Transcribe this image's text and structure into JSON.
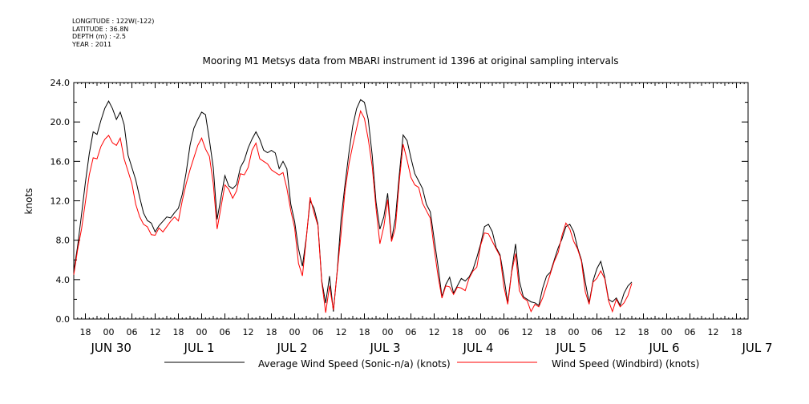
{
  "metadata": {
    "longitude": "LONGITUDE : 122W(-122)",
    "latitude": "LATITUDE : 36.8N",
    "depth": "DEPTH (m) : -2.5",
    "year": "YEAR : 2011"
  },
  "chart_data": {
    "type": "line",
    "title": "Mooring M1 Metsys data from MBARI instrument id 1396 at original sampling intervals",
    "ylabel": "knots",
    "xlabel": "",
    "ylim": [
      0,
      24
    ],
    "yticks": [
      "0.0",
      "4.0",
      "8.0",
      "12.0",
      "16.0",
      "20.0",
      "24.0"
    ],
    "xlim_hours": [
      -9,
      165
    ],
    "hour_tick_labels": [
      "18",
      "00",
      "06",
      "12",
      "18",
      "00",
      "06",
      "12",
      "18",
      "00",
      "06",
      "12",
      "18",
      "00",
      "06",
      "12",
      "18",
      "00",
      "06",
      "12",
      "18",
      "00",
      "06",
      "12",
      "18",
      "00",
      "06",
      "12",
      "18",
      "00",
      "06",
      "12"
    ],
    "day_labels": [
      "JUN 30",
      "JUL  1",
      "JUL  2",
      "JUL  3",
      "JUL  4",
      "JUL  5",
      "JUL  6",
      "JUL  7"
    ],
    "grid": false,
    "legend_position": "bottom",
    "series": [
      {
        "name": "Average Wind Speed (Sonic-n/a) (knots)",
        "color": "#000000",
        "points": [
          [
            -9,
            5.2
          ],
          [
            -8,
            7.5
          ],
          [
            -7,
            10.5
          ],
          [
            -6,
            13.5
          ],
          [
            -5,
            17
          ],
          [
            -4,
            19
          ],
          [
            -3,
            18.5
          ],
          [
            -2,
            20.5
          ],
          [
            -1,
            21.5
          ],
          [
            0,
            22
          ],
          [
            1,
            21
          ],
          [
            2,
            20.5
          ],
          [
            3,
            21
          ],
          [
            4,
            19.5
          ],
          [
            5,
            17
          ],
          [
            6,
            15.5
          ],
          [
            7,
            14
          ],
          [
            8,
            12
          ],
          [
            9,
            11
          ],
          [
            10,
            10
          ],
          [
            11,
            9.5
          ],
          [
            12,
            9.2
          ],
          [
            13,
            9.6
          ],
          [
            14,
            9.8
          ],
          [
            15,
            10
          ],
          [
            16,
            10.5
          ],
          [
            17,
            10.8
          ],
          [
            18,
            11
          ],
          [
            19,
            13
          ],
          [
            20,
            15
          ],
          [
            21,
            17.5
          ],
          [
            22,
            19
          ],
          [
            23,
            20.5
          ],
          [
            24,
            21
          ],
          [
            25,
            20.5
          ],
          [
            26,
            18.5
          ],
          [
            27,
            15.5
          ],
          [
            28,
            10
          ],
          [
            29,
            12
          ],
          [
            30,
            14.8
          ],
          [
            31,
            13.5
          ],
          [
            32,
            13
          ],
          [
            33,
            14
          ],
          [
            34,
            15.5
          ],
          [
            35,
            16
          ],
          [
            36,
            17
          ],
          [
            37,
            18.5
          ],
          [
            38,
            19
          ],
          [
            39,
            18
          ],
          [
            40,
            17.5
          ],
          [
            41,
            17
          ],
          [
            42,
            17
          ],
          [
            43,
            16.5
          ],
          [
            44,
            15.5
          ],
          [
            45,
            16
          ],
          [
            46,
            15
          ],
          [
            47,
            12
          ],
          [
            48,
            10
          ],
          [
            49,
            7
          ],
          [
            50,
            5
          ],
          [
            51,
            8.5
          ],
          [
            52,
            12
          ],
          [
            53,
            11
          ],
          [
            54,
            10
          ],
          [
            55,
            4
          ],
          [
            56,
            1.5
          ],
          [
            57,
            4
          ],
          [
            58,
            1
          ],
          [
            59,
            5
          ],
          [
            60,
            10
          ],
          [
            61,
            14
          ],
          [
            62,
            17
          ],
          [
            63,
            19.5
          ],
          [
            64,
            21
          ],
          [
            65,
            22.5
          ],
          [
            66,
            22
          ],
          [
            67,
            20
          ],
          [
            68,
            17
          ],
          [
            69,
            12
          ],
          [
            70,
            9
          ],
          [
            71,
            10
          ],
          [
            72,
            13
          ],
          [
            73,
            8
          ],
          [
            74,
            10
          ],
          [
            75,
            15
          ],
          [
            76,
            18.8
          ],
          [
            77,
            18
          ],
          [
            78,
            16
          ],
          [
            79,
            15
          ],
          [
            80,
            14
          ],
          [
            81,
            13
          ],
          [
            82,
            12
          ],
          [
            83,
            11
          ],
          [
            84,
            8
          ],
          [
            85,
            5
          ],
          [
            86,
            2.5
          ],
          [
            87,
            3.5
          ],
          [
            88,
            4
          ],
          [
            89,
            3
          ],
          [
            90,
            3.5
          ],
          [
            91,
            4
          ],
          [
            92,
            3.5
          ],
          [
            93,
            4.5
          ],
          [
            94,
            5
          ],
          [
            95,
            6
          ],
          [
            96,
            8
          ],
          [
            97,
            9.5
          ],
          [
            98,
            9.5
          ],
          [
            99,
            8.5
          ],
          [
            100,
            7.5
          ],
          [
            101,
            6.5
          ],
          [
            102,
            4
          ],
          [
            103,
            2
          ],
          [
            104,
            5
          ],
          [
            105,
            7.5
          ],
          [
            106,
            3.5
          ],
          [
            107,
            2.5
          ],
          [
            108,
            2
          ],
          [
            109,
            1.5
          ],
          [
            110,
            2
          ],
          [
            111,
            1.5
          ],
          [
            112,
            3
          ],
          [
            113,
            4
          ],
          [
            114,
            5
          ],
          [
            115,
            6
          ],
          [
            116,
            7
          ],
          [
            117,
            8.5
          ],
          [
            118,
            9.5
          ],
          [
            119,
            9.5
          ],
          [
            120,
            8.5
          ],
          [
            121,
            7.5
          ],
          [
            122,
            6
          ],
          [
            123,
            3.5
          ],
          [
            124,
            2
          ],
          [
            125,
            4
          ],
          [
            126,
            5
          ],
          [
            127,
            5.5
          ],
          [
            128,
            4.5
          ],
          [
            129,
            2
          ],
          [
            130,
            1.5
          ],
          [
            131,
            2.5
          ],
          [
            132,
            1.5
          ],
          [
            133,
            2.5
          ],
          [
            134,
            3
          ],
          [
            135,
            4
          ]
        ]
      },
      {
        "name": "Wind Speed (Windbird) (knots)",
        "color": "#ff0000",
        "points": [
          [
            -9,
            4.5
          ],
          [
            -8,
            6.8
          ],
          [
            -7,
            9.5
          ],
          [
            -6,
            12
          ],
          [
            -5,
            14.5
          ],
          [
            -4,
            16
          ],
          [
            -3,
            16.5
          ],
          [
            -2,
            17.5
          ],
          [
            -1,
            18
          ],
          [
            0,
            19
          ],
          [
            1,
            18
          ],
          [
            2,
            17.5
          ],
          [
            3,
            18
          ],
          [
            4,
            16.5
          ],
          [
            5,
            15
          ],
          [
            6,
            13.5
          ],
          [
            7,
            12
          ],
          [
            8,
            10.5
          ],
          [
            9,
            9.5
          ],
          [
            10,
            9
          ],
          [
            11,
            8.8
          ],
          [
            12,
            8.5
          ],
          [
            13,
            9
          ],
          [
            14,
            9.2
          ],
          [
            15,
            9.5
          ],
          [
            16,
            9.8
          ],
          [
            17,
            10
          ],
          [
            18,
            10.2
          ],
          [
            19,
            12
          ],
          [
            20,
            13.5
          ],
          [
            21,
            15.5
          ],
          [
            22,
            16.5
          ],
          [
            23,
            17.5
          ],
          [
            24,
            18
          ],
          [
            25,
            17.5
          ],
          [
            26,
            16.5
          ],
          [
            27,
            13.5
          ],
          [
            28,
            9.5
          ],
          [
            29,
            11.5
          ],
          [
            30,
            13.5
          ],
          [
            31,
            12.8
          ],
          [
            32,
            12.5
          ],
          [
            33,
            13
          ],
          [
            34,
            14.5
          ],
          [
            35,
            15
          ],
          [
            36,
            15.5
          ],
          [
            37,
            17
          ],
          [
            38,
            17.5
          ],
          [
            39,
            16.5
          ],
          [
            40,
            16
          ],
          [
            41,
            15.5
          ],
          [
            42,
            15.5
          ],
          [
            43,
            15
          ],
          [
            44,
            14.5
          ],
          [
            45,
            14.5
          ],
          [
            46,
            13.5
          ],
          [
            47,
            11
          ],
          [
            48,
            9
          ],
          [
            49,
            6
          ],
          [
            50,
            4.5
          ],
          [
            51,
            8
          ],
          [
            52,
            12
          ],
          [
            53,
            11
          ],
          [
            54,
            9.5
          ],
          [
            55,
            3.5
          ],
          [
            56,
            1
          ],
          [
            57,
            3.5
          ],
          [
            58,
            0.8
          ],
          [
            59,
            4.5
          ],
          [
            60,
            9
          ],
          [
            61,
            13
          ],
          [
            62,
            15.5
          ],
          [
            63,
            18
          ],
          [
            64,
            19.5
          ],
          [
            65,
            21
          ],
          [
            66,
            20
          ],
          [
            67,
            18.5
          ],
          [
            68,
            15.5
          ],
          [
            69,
            11
          ],
          [
            70,
            8
          ],
          [
            71,
            9.5
          ],
          [
            72,
            12
          ],
          [
            73,
            7.5
          ],
          [
            74,
            9.5
          ],
          [
            75,
            14
          ],
          [
            76,
            17.5
          ],
          [
            77,
            16.5
          ],
          [
            78,
            14.5
          ],
          [
            79,
            13.5
          ],
          [
            80,
            13
          ],
          [
            81,
            12
          ],
          [
            82,
            11
          ],
          [
            83,
            10
          ],
          [
            84,
            7.5
          ],
          [
            85,
            4.5
          ],
          [
            86,
            2
          ],
          [
            87,
            3
          ],
          [
            88,
            3.5
          ],
          [
            89,
            2.5
          ],
          [
            90,
            3
          ],
          [
            91,
            3.5
          ],
          [
            92,
            3
          ],
          [
            93,
            4
          ],
          [
            94,
            4.5
          ],
          [
            95,
            5.5
          ],
          [
            96,
            7.5
          ],
          [
            97,
            8.5
          ],
          [
            98,
            9
          ],
          [
            99,
            8
          ],
          [
            100,
            7
          ],
          [
            101,
            6
          ],
          [
            102,
            3.5
          ],
          [
            103,
            1.5
          ],
          [
            104,
            4.5
          ],
          [
            105,
            7
          ],
          [
            106,
            3
          ],
          [
            107,
            2
          ],
          [
            108,
            1.5
          ],
          [
            109,
            1
          ],
          [
            110,
            1.5
          ],
          [
            111,
            1
          ],
          [
            112,
            2.5
          ],
          [
            113,
            3.5
          ],
          [
            114,
            4.5
          ],
          [
            115,
            5.5
          ],
          [
            116,
            7
          ],
          [
            117,
            8.5
          ],
          [
            118,
            9.5
          ],
          [
            119,
            9.5
          ],
          [
            120,
            8
          ],
          [
            121,
            7
          ],
          [
            122,
            5.5
          ],
          [
            123,
            3
          ],
          [
            124,
            1.5
          ],
          [
            125,
            3.5
          ],
          [
            126,
            4.5
          ],
          [
            127,
            5
          ],
          [
            128,
            4
          ],
          [
            129,
            1.5
          ],
          [
            130,
            1
          ],
          [
            131,
            2
          ],
          [
            132,
            1
          ],
          [
            133,
            2
          ],
          [
            134,
            2.5
          ],
          [
            135,
            3.5
          ]
        ]
      }
    ]
  }
}
